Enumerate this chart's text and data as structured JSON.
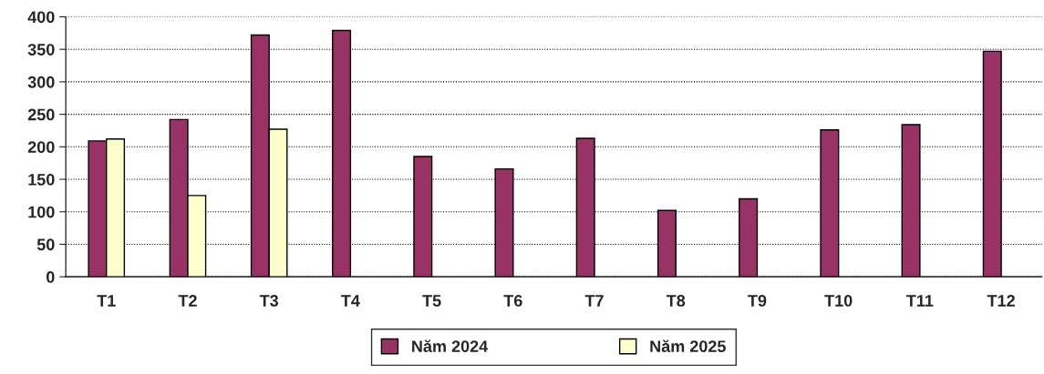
{
  "chart_data": {
    "type": "bar",
    "categories": [
      "T1",
      "T2",
      "T3",
      "T4",
      "T5",
      "T6",
      "T7",
      "T8",
      "T9",
      "T10",
      "T11",
      "T12"
    ],
    "series": [
      {
        "name": "Năm 2024",
        "color": "#993366",
        "values": [
          209,
          242,
          372,
          379,
          185,
          166,
          213,
          102,
          120,
          226,
          234,
          347
        ]
      },
      {
        "name": "Năm 2025",
        "color": "#ffffcc",
        "values": [
          212,
          125,
          227,
          null,
          null,
          null,
          null,
          null,
          null,
          null,
          null,
          null
        ]
      }
    ],
    "ylim": [
      0,
      400
    ],
    "yticks": [
      0,
      50,
      100,
      150,
      200,
      250,
      300,
      350,
      400
    ],
    "grid": "y",
    "legend": "bottom"
  }
}
